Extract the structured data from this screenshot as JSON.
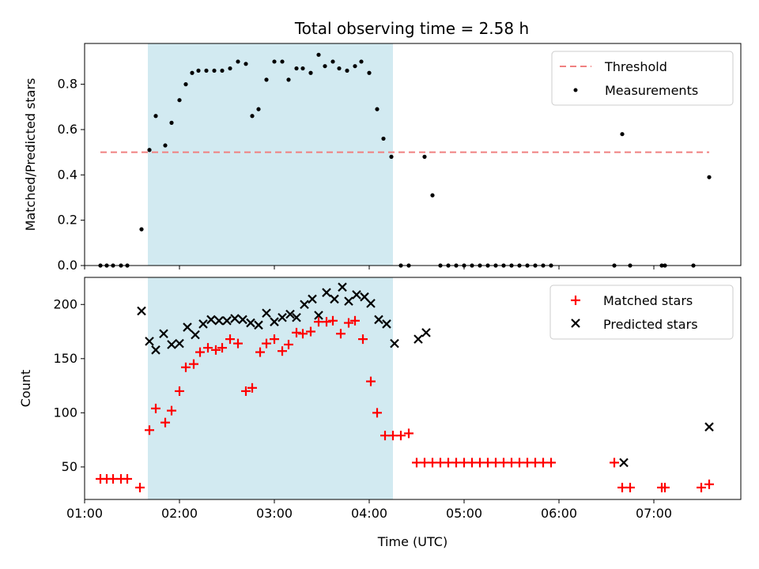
{
  "chart_data": [
    {
      "type": "scatter",
      "title": "Total observing time = 2.58 h",
      "ylabel": "Matched/Predicted stars",
      "xlabel": "",
      "xlim": [
        "01:00",
        "07:55"
      ],
      "ylim": [
        0,
        0.98
      ],
      "x_ticks": [
        "01:00",
        "02:00",
        "03:00",
        "04:00",
        "05:00",
        "06:00",
        "07:00"
      ],
      "y_ticks": [
        "0.0",
        "0.2",
        "0.4",
        "0.6",
        "0.8"
      ],
      "y_tick_values": [
        0,
        0.2,
        0.4,
        0.6,
        0.8
      ],
      "legend_position": "top-right",
      "shaded_span": [
        "01:40",
        "04:15"
      ],
      "shade_color": "#add8e6",
      "threshold": {
        "name": "Threshold",
        "value": 0.5,
        "x_range": [
          "01:10",
          "07:35"
        ],
        "color": "#f08080"
      },
      "series": [
        {
          "name": "Measurements",
          "color": "#000000",
          "points": [
            [
              "01:10",
              0
            ],
            [
              "01:14",
              0
            ],
            [
              "01:18",
              0
            ],
            [
              "01:23",
              0
            ],
            [
              "01:27",
              0
            ],
            [
              "01:36",
              0.16
            ],
            [
              "01:41",
              0.51
            ],
            [
              "01:45",
              0.66
            ],
            [
              "01:51",
              0.53
            ],
            [
              "01:55",
              0.63
            ],
            [
              "02:00",
              0.73
            ],
            [
              "02:04",
              0.8
            ],
            [
              "02:08",
              0.85
            ],
            [
              "02:12",
              0.86
            ],
            [
              "02:17",
              0.86
            ],
            [
              "02:22",
              0.86
            ],
            [
              "02:27",
              0.86
            ],
            [
              "02:32",
              0.87
            ],
            [
              "02:37",
              0.9
            ],
            [
              "02:42",
              0.89
            ],
            [
              "02:46",
              0.66
            ],
            [
              "02:50",
              0.69
            ],
            [
              "02:55",
              0.82
            ],
            [
              "03:00",
              0.9
            ],
            [
              "03:05",
              0.9
            ],
            [
              "03:09",
              0.82
            ],
            [
              "03:14",
              0.87
            ],
            [
              "03:18",
              0.87
            ],
            [
              "03:23",
              0.85
            ],
            [
              "03:28",
              0.93
            ],
            [
              "03:32",
              0.88
            ],
            [
              "03:37",
              0.9
            ],
            [
              "03:41",
              0.87
            ],
            [
              "03:46",
              0.86
            ],
            [
              "03:51",
              0.88
            ],
            [
              "03:55",
              0.9
            ],
            [
              "04:00",
              0.85
            ],
            [
              "04:05",
              0.69
            ],
            [
              "04:09",
              0.56
            ],
            [
              "04:14",
              0.48
            ],
            [
              "04:20",
              0
            ],
            [
              "04:25",
              0
            ],
            [
              "04:35",
              0.48
            ],
            [
              "04:40",
              0.31
            ],
            [
              "04:45",
              0
            ],
            [
              "04:50",
              0
            ],
            [
              "04:55",
              0
            ],
            [
              "05:00",
              0
            ],
            [
              "05:05",
              0
            ],
            [
              "05:10",
              0
            ],
            [
              "05:15",
              0
            ],
            [
              "05:20",
              0
            ],
            [
              "05:25",
              0
            ],
            [
              "05:30",
              0
            ],
            [
              "05:35",
              0
            ],
            [
              "05:40",
              0
            ],
            [
              "05:45",
              0
            ],
            [
              "05:50",
              0
            ],
            [
              "05:55",
              0
            ],
            [
              "06:35",
              0
            ],
            [
              "06:40",
              0.58
            ],
            [
              "06:45",
              0
            ],
            [
              "07:05",
              0
            ],
            [
              "07:07",
              0
            ],
            [
              "07:25",
              0
            ],
            [
              "07:35",
              0.39
            ]
          ]
        }
      ]
    },
    {
      "type": "scatter",
      "title": "",
      "ylabel": "Count",
      "xlabel": "Time (UTC)",
      "xlim": [
        "01:00",
        "07:55"
      ],
      "ylim": [
        20,
        225
      ],
      "x_ticks": [
        "01:00",
        "02:00",
        "03:00",
        "04:00",
        "05:00",
        "06:00",
        "07:00"
      ],
      "y_ticks": [
        "50",
        "100",
        "150",
        "200"
      ],
      "y_tick_values": [
        50,
        100,
        150,
        200
      ],
      "legend_position": "top-right",
      "shaded_span": [
        "01:40",
        "04:15"
      ],
      "shade_color": "#add8e6",
      "series": [
        {
          "name": "Matched stars",
          "marker": "plus",
          "color": "#ff0000",
          "points": [
            [
              "01:10",
              39
            ],
            [
              "01:14",
              39
            ],
            [
              "01:18",
              39
            ],
            [
              "01:23",
              39
            ],
            [
              "01:27",
              39
            ],
            [
              "01:35",
              31
            ],
            [
              "01:41",
              84
            ],
            [
              "01:45",
              104
            ],
            [
              "01:51",
              91
            ],
            [
              "01:55",
              102
            ],
            [
              "02:00",
              120
            ],
            [
              "02:04",
              142
            ],
            [
              "02:09",
              145
            ],
            [
              "02:13",
              156
            ],
            [
              "02:18",
              160
            ],
            [
              "02:23",
              158
            ],
            [
              "02:27",
              160
            ],
            [
              "02:32",
              168
            ],
            [
              "02:37",
              164
            ],
            [
              "02:42",
              120
            ],
            [
              "02:46",
              123
            ],
            [
              "02:51",
              156
            ],
            [
              "02:55",
              164
            ],
            [
              "03:00",
              168
            ],
            [
              "03:05",
              157
            ],
            [
              "03:09",
              163
            ],
            [
              "03:14",
              174
            ],
            [
              "03:18",
              173
            ],
            [
              "03:23",
              175
            ],
            [
              "03:28",
              184
            ],
            [
              "03:33",
              184
            ],
            [
              "03:37",
              185
            ],
            [
              "03:42",
              173
            ],
            [
              "03:47",
              183
            ],
            [
              "03:51",
              185
            ],
            [
              "03:56",
              168
            ],
            [
              "04:01",
              129
            ],
            [
              "04:05",
              100
            ],
            [
              "04:10",
              79
            ],
            [
              "04:15",
              79
            ],
            [
              "04:20",
              79
            ],
            [
              "04:25",
              81
            ],
            [
              "04:30",
              54
            ],
            [
              "04:35",
              54
            ],
            [
              "04:40",
              54
            ],
            [
              "04:45",
              54
            ],
            [
              "04:50",
              54
            ],
            [
              "04:55",
              54
            ],
            [
              "05:00",
              54
            ],
            [
              "05:05",
              54
            ],
            [
              "05:10",
              54
            ],
            [
              "05:15",
              54
            ],
            [
              "05:20",
              54
            ],
            [
              "05:25",
              54
            ],
            [
              "05:30",
              54
            ],
            [
              "05:35",
              54
            ],
            [
              "05:40",
              54
            ],
            [
              "05:45",
              54
            ],
            [
              "05:50",
              54
            ],
            [
              "05:55",
              54
            ],
            [
              "06:35",
              54
            ],
            [
              "06:40",
              31
            ],
            [
              "06:45",
              31
            ],
            [
              "07:05",
              31
            ],
            [
              "07:07",
              31
            ],
            [
              "07:30",
              31
            ],
            [
              "07:35",
              34
            ]
          ]
        },
        {
          "name": "Predicted stars",
          "marker": "x",
          "color": "#000000",
          "points": [
            [
              "01:36",
              194
            ],
            [
              "01:41",
              166
            ],
            [
              "01:45",
              158
            ],
            [
              "01:50",
              173
            ],
            [
              "01:55",
              163
            ],
            [
              "02:00",
              164
            ],
            [
              "02:05",
              179
            ],
            [
              "02:10",
              172
            ],
            [
              "02:15",
              182
            ],
            [
              "02:20",
              186
            ],
            [
              "02:25",
              185
            ],
            [
              "02:30",
              185
            ],
            [
              "02:35",
              187
            ],
            [
              "02:40",
              186
            ],
            [
              "02:45",
              183
            ],
            [
              "02:50",
              181
            ],
            [
              "02:55",
              192
            ],
            [
              "03:00",
              184
            ],
            [
              "03:05",
              188
            ],
            [
              "03:10",
              191
            ],
            [
              "03:14",
              188
            ],
            [
              "03:19",
              200
            ],
            [
              "03:24",
              205
            ],
            [
              "03:28",
              190
            ],
            [
              "03:33",
              211
            ],
            [
              "03:38",
              205
            ],
            [
              "03:43",
              216
            ],
            [
              "03:47",
              203
            ],
            [
              "03:52",
              209
            ],
            [
              "03:57",
              207
            ],
            [
              "04:01",
              201
            ],
            [
              "04:06",
              186
            ],
            [
              "04:11",
              182
            ],
            [
              "04:16",
              164
            ],
            [
              "04:31",
              168
            ],
            [
              "04:36",
              174
            ],
            [
              "06:41",
              54
            ],
            [
              "07:35",
              87
            ]
          ]
        }
      ]
    }
  ]
}
